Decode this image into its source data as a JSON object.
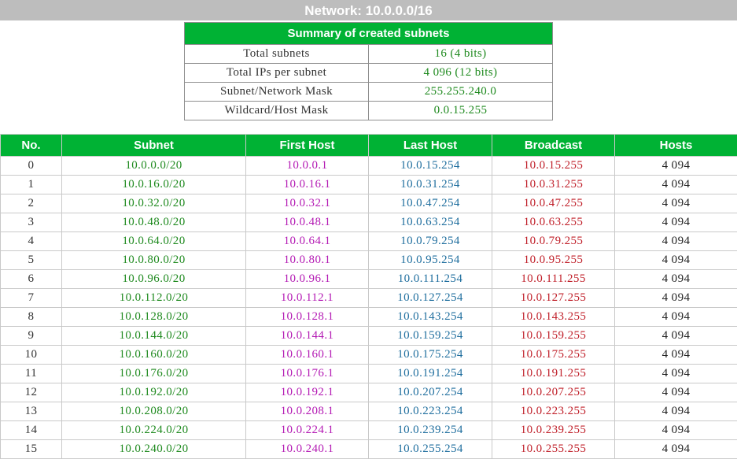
{
  "network_title": "Network: 10.0.0.0/16",
  "summary": {
    "title": "Summary of created subnets",
    "rows": [
      {
        "label": "Total subnets",
        "value": "16 (4 bits)"
      },
      {
        "label": "Total IPs per subnet",
        "value": "4 096 (12 bits)"
      },
      {
        "label": "Subnet/Network Mask",
        "value": "255.255.240.0"
      },
      {
        "label": "Wildcard/Host Mask",
        "value": "0.0.15.255"
      }
    ]
  },
  "subnets": {
    "headers": [
      "No.",
      "Subnet",
      "First Host",
      "Last Host",
      "Broadcast",
      "Hosts"
    ],
    "rows": [
      {
        "no": "0",
        "subnet": "10.0.0.0/20",
        "first": "10.0.0.1",
        "last": "10.0.15.254",
        "broadcast": "10.0.15.255",
        "hosts": "4 094"
      },
      {
        "no": "1",
        "subnet": "10.0.16.0/20",
        "first": "10.0.16.1",
        "last": "10.0.31.254",
        "broadcast": "10.0.31.255",
        "hosts": "4 094"
      },
      {
        "no": "2",
        "subnet": "10.0.32.0/20",
        "first": "10.0.32.1",
        "last": "10.0.47.254",
        "broadcast": "10.0.47.255",
        "hosts": "4 094"
      },
      {
        "no": "3",
        "subnet": "10.0.48.0/20",
        "first": "10.0.48.1",
        "last": "10.0.63.254",
        "broadcast": "10.0.63.255",
        "hosts": "4 094"
      },
      {
        "no": "4",
        "subnet": "10.0.64.0/20",
        "first": "10.0.64.1",
        "last": "10.0.79.254",
        "broadcast": "10.0.79.255",
        "hosts": "4 094"
      },
      {
        "no": "5",
        "subnet": "10.0.80.0/20",
        "first": "10.0.80.1",
        "last": "10.0.95.254",
        "broadcast": "10.0.95.255",
        "hosts": "4 094"
      },
      {
        "no": "6",
        "subnet": "10.0.96.0/20",
        "first": "10.0.96.1",
        "last": "10.0.111.254",
        "broadcast": "10.0.111.255",
        "hosts": "4 094"
      },
      {
        "no": "7",
        "subnet": "10.0.112.0/20",
        "first": "10.0.112.1",
        "last": "10.0.127.254",
        "broadcast": "10.0.127.255",
        "hosts": "4 094"
      },
      {
        "no": "8",
        "subnet": "10.0.128.0/20",
        "first": "10.0.128.1",
        "last": "10.0.143.254",
        "broadcast": "10.0.143.255",
        "hosts": "4 094"
      },
      {
        "no": "9",
        "subnet": "10.0.144.0/20",
        "first": "10.0.144.1",
        "last": "10.0.159.254",
        "broadcast": "10.0.159.255",
        "hosts": "4 094"
      },
      {
        "no": "10",
        "subnet": "10.0.160.0/20",
        "first": "10.0.160.1",
        "last": "10.0.175.254",
        "broadcast": "10.0.175.255",
        "hosts": "4 094"
      },
      {
        "no": "11",
        "subnet": "10.0.176.0/20",
        "first": "10.0.176.1",
        "last": "10.0.191.254",
        "broadcast": "10.0.191.255",
        "hosts": "4 094"
      },
      {
        "no": "12",
        "subnet": "10.0.192.0/20",
        "first": "10.0.192.1",
        "last": "10.0.207.254",
        "broadcast": "10.0.207.255",
        "hosts": "4 094"
      },
      {
        "no": "13",
        "subnet": "10.0.208.0/20",
        "first": "10.0.208.1",
        "last": "10.0.223.254",
        "broadcast": "10.0.223.255",
        "hosts": "4 094"
      },
      {
        "no": "14",
        "subnet": "10.0.224.0/20",
        "first": "10.0.224.1",
        "last": "10.0.239.254",
        "broadcast": "10.0.239.255",
        "hosts": "4 094"
      },
      {
        "no": "15",
        "subnet": "10.0.240.0/20",
        "first": "10.0.240.1",
        "last": "10.0.255.254",
        "broadcast": "10.0.255.255",
        "hosts": "4 094"
      }
    ]
  },
  "colors": {
    "header_green": "#00b234",
    "title_bar_gray": "#bdbdbd",
    "subnet_green": "#1f8a1f",
    "first_host_magenta": "#b41ab4",
    "last_host_blue": "#1f6e9e",
    "broadcast_red": "#c0202a"
  }
}
